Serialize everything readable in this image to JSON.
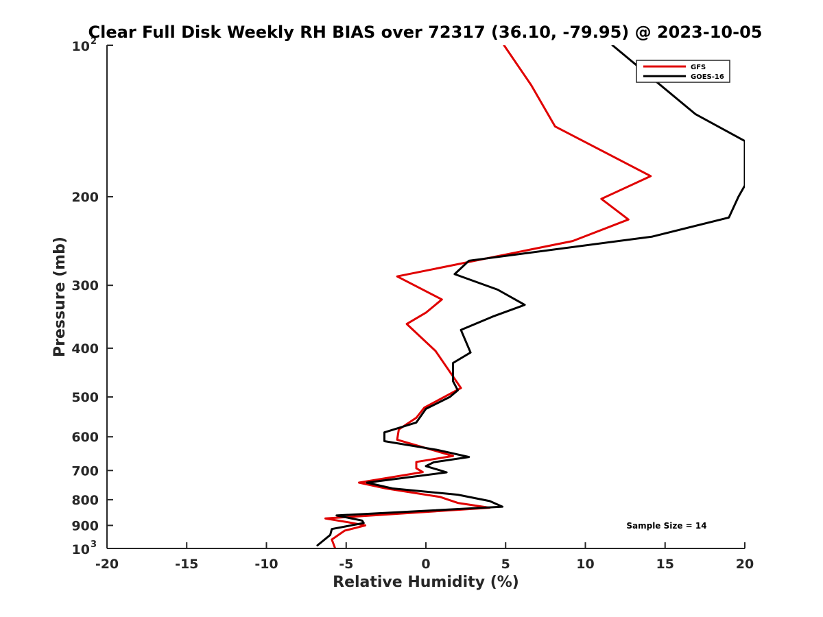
{
  "chart_data": {
    "type": "line",
    "title": "Clear Full Disk Weekly RH BIAS over 72317 (36.10, -79.95) @ 2023-10-05",
    "xlabel": "Relative Humidity (%)",
    "ylabel": "Pressure (mb)",
    "xlim": [
      -20,
      20
    ],
    "ylim": [
      100,
      1000
    ],
    "yscale": "log",
    "y_reversed": true,
    "x_ticks": [
      "-20",
      "-15",
      "-10",
      "-5",
      "0",
      "5",
      "10",
      "15",
      "20"
    ],
    "y_ticks": [
      {
        "value": 100,
        "base": "10",
        "exp": "2"
      },
      {
        "value": 200,
        "label": "200"
      },
      {
        "value": 300,
        "label": "300"
      },
      {
        "value": 400,
        "label": "400"
      },
      {
        "value": 500,
        "label": "500"
      },
      {
        "value": 600,
        "label": "600"
      },
      {
        "value": 700,
        "label": "700"
      },
      {
        "value": 800,
        "label": "800"
      },
      {
        "value": 900,
        "label": "900"
      },
      {
        "value": 1000,
        "base": "10",
        "exp": "3"
      }
    ],
    "legend_position": "top-right",
    "annotation": "Sample Size = 14",
    "series": [
      {
        "name": "GFS",
        "color": "#e00000",
        "points": [
          [
            4.9,
            100
          ],
          [
            6.6,
            120
          ],
          [
            8.1,
            145
          ],
          [
            14.1,
            182
          ],
          [
            11.0,
            202
          ],
          [
            12.7,
            222
          ],
          [
            9.2,
            245
          ],
          [
            -1.8,
            288
          ],
          [
            1.0,
            320
          ],
          [
            0.0,
            340
          ],
          [
            -1.2,
            358
          ],
          [
            0.6,
            405
          ],
          [
            2.2,
            480
          ],
          [
            -0.1,
            525
          ],
          [
            -0.6,
            550
          ],
          [
            -1.7,
            580
          ],
          [
            -1.8,
            608
          ],
          [
            1.7,
            655
          ],
          [
            -0.6,
            673
          ],
          [
            -0.6,
            693
          ],
          [
            -0.2,
            705
          ],
          [
            -4.2,
            740
          ],
          [
            -2.5,
            760
          ],
          [
            0.9,
            790
          ],
          [
            2.0,
            812
          ],
          [
            4.0,
            830
          ],
          [
            -6.3,
            872
          ],
          [
            -4.8,
            888
          ],
          [
            -3.8,
            900
          ],
          [
            -5.1,
            922
          ],
          [
            -5.9,
            960
          ],
          [
            -5.7,
            998
          ]
        ]
      },
      {
        "name": "GOES-16",
        "color": "#000000",
        "points": [
          [
            11.7,
            100
          ],
          [
            16.9,
            137
          ],
          [
            20.0,
            155
          ],
          [
            20.0,
            190
          ],
          [
            19.6,
            200
          ],
          [
            19.0,
            220
          ],
          [
            14.2,
            240
          ],
          [
            2.7,
            268
          ],
          [
            1.8,
            285
          ],
          [
            4.5,
            306
          ],
          [
            6.2,
            328
          ],
          [
            4.2,
            346
          ],
          [
            2.2,
            368
          ],
          [
            2.8,
            408
          ],
          [
            1.7,
            428
          ],
          [
            1.7,
            465
          ],
          [
            2.0,
            485
          ],
          [
            1.5,
            500
          ],
          [
            0.0,
            528
          ],
          [
            -0.6,
            562
          ],
          [
            -2.6,
            588
          ],
          [
            -2.6,
            612
          ],
          [
            0.7,
            637
          ],
          [
            2.7,
            658
          ],
          [
            0.5,
            674
          ],
          [
            0.0,
            686
          ],
          [
            1.3,
            706
          ],
          [
            -3.7,
            740
          ],
          [
            -2.1,
            760
          ],
          [
            2.0,
            782
          ],
          [
            4.0,
            805
          ],
          [
            4.8,
            826
          ],
          [
            -5.6,
            860
          ],
          [
            -4.0,
            880
          ],
          [
            -3.9,
            890
          ],
          [
            -5.9,
            915
          ],
          [
            -6.0,
            940
          ],
          [
            -6.8,
            986
          ]
        ]
      }
    ]
  }
}
